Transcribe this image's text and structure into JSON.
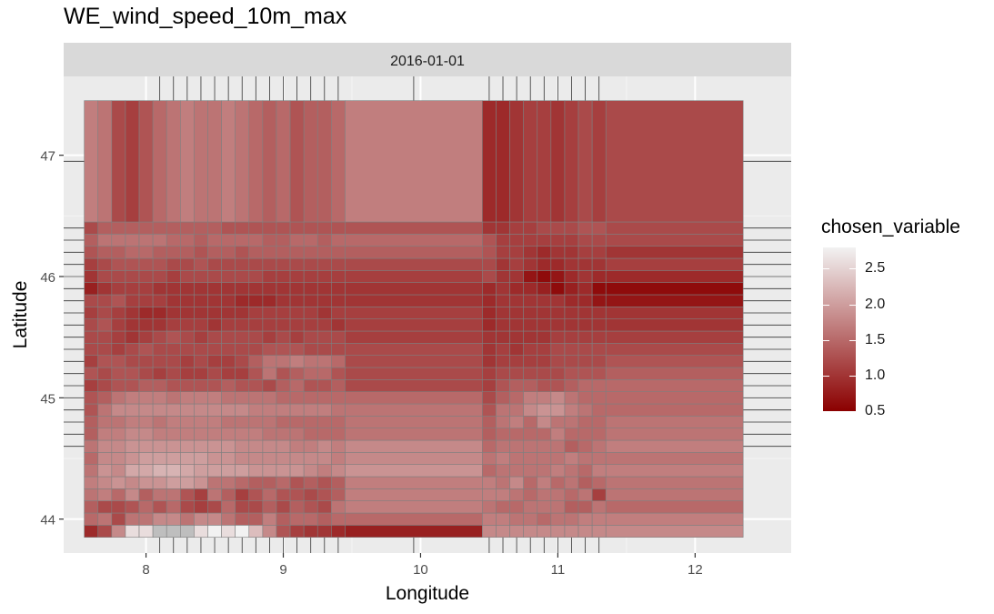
{
  "chart_data": {
    "type": "heatmap",
    "title": "WE_wind_speed_10m_max",
    "facet_label": "2016-01-01",
    "xlabel": "Longitude",
    "ylabel": "Latitude",
    "xlim": [
      7.4,
      12.7
    ],
    "ylim": [
      43.72,
      47.65
    ],
    "x_ticks": [
      8,
      9,
      10,
      11,
      12
    ],
    "y_ticks": [
      44,
      45,
      46,
      47
    ],
    "x_tick_labels": [
      "8",
      "9",
      "10",
      "11",
      "12"
    ],
    "y_tick_labels": [
      "44",
      "45",
      "46",
      "47"
    ],
    "legend": {
      "title": "chosen_variable",
      "placement": "right",
      "min": 0.5,
      "max": 2.8,
      "low_color": "#8B0000",
      "high_color": "#F2F2F2",
      "ticks": [
        0.5,
        1.0,
        1.5,
        2.0,
        2.5
      ],
      "tick_labels": [
        "0.5",
        "1.0",
        "1.5",
        "2.0",
        "2.5"
      ]
    },
    "grid": true,
    "panel_background": "#EBEBEB",
    "cell_border_color": "#7F7F7F",
    "missing_color": "#BEBEBE",
    "x_edges": [
      7.55,
      7.65,
      7.75,
      7.85,
      7.95,
      8.05,
      8.15,
      8.25,
      8.35,
      8.45,
      8.55,
      8.65,
      8.75,
      8.85,
      8.95,
      9.05,
      9.15,
      9.25,
      9.35,
      9.45,
      10.45,
      10.55,
      10.65,
      10.75,
      10.85,
      10.95,
      11.05,
      11.15,
      11.25,
      11.35,
      12.35
    ],
    "y_edges": [
      43.85,
      43.95,
      44.05,
      44.15,
      44.25,
      44.35,
      44.45,
      44.55,
      44.65,
      44.75,
      44.85,
      44.95,
      45.05,
      45.15,
      45.25,
      45.35,
      45.45,
      45.55,
      45.65,
      45.75,
      45.85,
      45.95,
      46.05,
      46.15,
      46.25,
      46.35,
      46.45,
      47.45
    ],
    "z": [
      [
        0.9,
        1.2,
        1.8,
        2.6,
        2.6,
        null,
        null,
        null,
        2.6,
        2.8,
        2.6,
        2.8,
        2.3,
        1.8,
        1.3,
        1.1,
        1.0,
        1.0,
        0.9,
        0.8,
        1.8,
        1.8,
        1.8,
        1.8,
        1.8,
        1.8,
        1.8,
        1.8,
        1.8,
        1.8
      ],
      [
        1.5,
        1.6,
        1.2,
        1.6,
        1.6,
        1.8,
        1.8,
        1.6,
        1.8,
        1.8,
        1.6,
        1.4,
        1.4,
        1.7,
        1.4,
        1.5,
        1.5,
        1.4,
        1.5,
        1.5,
        1.7,
        1.7,
        1.6,
        1.6,
        1.5,
        1.6,
        1.6,
        1.7,
        1.7,
        1.7
      ],
      [
        1.4,
        1.2,
        1.2,
        1.3,
        1.5,
        1.3,
        1.5,
        1.2,
        1.1,
        1.2,
        1.5,
        1.2,
        1.2,
        1.4,
        1.2,
        1.4,
        1.3,
        1.2,
        1.6,
        1.7,
        1.6,
        1.5,
        1.5,
        1.6,
        1.6,
        1.6,
        1.4,
        1.4,
        1.6,
        1.5
      ],
      [
        1.6,
        1.7,
        1.5,
        1.8,
        1.4,
        1.6,
        1.6,
        1.3,
        1.1,
        1.6,
        1.4,
        1.1,
        1.3,
        1.5,
        1.3,
        1.3,
        1.2,
        1.3,
        1.4,
        1.7,
        1.7,
        1.7,
        1.6,
        1.5,
        1.6,
        1.6,
        1.5,
        1.6,
        1.1,
        1.6
      ],
      [
        1.7,
        1.8,
        1.9,
        1.8,
        1.9,
        1.9,
        2.0,
        2.0,
        1.9,
        1.6,
        1.6,
        1.5,
        1.4,
        1.4,
        1.5,
        1.3,
        1.4,
        1.3,
        1.4,
        1.7,
        1.7,
        1.6,
        1.8,
        1.5,
        1.7,
        1.5,
        1.6,
        1.4,
        1.5,
        1.6
      ],
      [
        1.6,
        1.9,
        1.8,
        2.1,
        2.1,
        2.2,
        2.2,
        2.1,
        2.0,
        2.0,
        2.0,
        2.0,
        1.9,
        1.9,
        1.9,
        1.9,
        1.8,
        1.7,
        1.8,
        1.9,
        1.5,
        1.6,
        1.6,
        1.6,
        1.6,
        1.7,
        1.6,
        1.5,
        1.7,
        1.7
      ],
      [
        1.5,
        1.8,
        1.8,
        1.9,
        2.0,
        2.0,
        2.0,
        2.0,
        2.0,
        1.9,
        1.9,
        1.8,
        1.8,
        1.8,
        1.8,
        1.8,
        1.8,
        1.8,
        1.7,
        1.8,
        1.6,
        1.7,
        1.6,
        1.6,
        1.6,
        1.6,
        1.7,
        1.6,
        1.6,
        1.6
      ],
      [
        1.6,
        1.8,
        1.8,
        1.9,
        1.9,
        1.9,
        1.9,
        1.9,
        1.9,
        1.9,
        1.9,
        1.8,
        1.8,
        1.8,
        1.8,
        1.7,
        1.7,
        1.8,
        1.7,
        1.8,
        1.5,
        1.6,
        1.6,
        1.6,
        1.6,
        1.6,
        1.4,
        1.5,
        1.6,
        1.7
      ],
      [
        1.4,
        1.7,
        1.7,
        1.8,
        1.8,
        1.7,
        1.7,
        1.7,
        1.7,
        1.7,
        1.7,
        1.7,
        1.7,
        1.6,
        1.6,
        1.6,
        1.5,
        1.5,
        1.5,
        1.6,
        1.4,
        1.5,
        1.5,
        1.5,
        1.5,
        1.7,
        1.5,
        1.5,
        1.5,
        1.6
      ],
      [
        1.4,
        1.6,
        1.6,
        1.7,
        1.7,
        1.6,
        1.7,
        1.7,
        1.7,
        1.7,
        1.6,
        1.6,
        1.6,
        1.6,
        1.5,
        1.5,
        1.5,
        1.5,
        1.5,
        1.6,
        1.4,
        1.6,
        1.7,
        1.5,
        1.8,
        1.6,
        1.6,
        1.5,
        1.5,
        1.6
      ],
      [
        1.3,
        1.6,
        1.8,
        1.8,
        1.8,
        1.8,
        1.8,
        1.8,
        1.8,
        1.8,
        1.8,
        1.8,
        1.7,
        1.7,
        1.7,
        1.7,
        1.7,
        1.7,
        1.6,
        1.6,
        1.3,
        1.6,
        1.6,
        1.8,
        1.9,
        1.9,
        1.7,
        1.6,
        1.5,
        1.5
      ],
      [
        1.3,
        1.4,
        1.6,
        1.7,
        1.7,
        1.7,
        1.6,
        1.7,
        1.7,
        1.7,
        1.6,
        1.6,
        1.6,
        1.6,
        1.5,
        1.5,
        1.5,
        1.5,
        1.5,
        1.5,
        1.2,
        1.4,
        1.5,
        1.7,
        1.7,
        1.8,
        1.6,
        1.5,
        1.5,
        1.5
      ],
      [
        1.1,
        1.2,
        1.3,
        1.3,
        1.4,
        1.4,
        1.3,
        1.3,
        1.3,
        1.3,
        1.4,
        1.3,
        1.3,
        1.2,
        1.4,
        1.5,
        1.3,
        1.3,
        1.4,
        1.2,
        1.1,
        1.3,
        1.4,
        1.4,
        1.3,
        1.3,
        1.4,
        1.5,
        1.5,
        1.5
      ],
      [
        1.3,
        1.2,
        1.3,
        1.3,
        1.2,
        1.1,
        1.2,
        1.1,
        1.1,
        1.2,
        1.1,
        1.1,
        1.3,
        1.6,
        1.3,
        1.4,
        1.5,
        1.5,
        1.3,
        1.2,
        1.1,
        1.2,
        1.2,
        1.2,
        1.2,
        1.2,
        1.3,
        1.3,
        1.3,
        1.4
      ],
      [
        1.1,
        1.3,
        1.3,
        1.2,
        1.2,
        1.2,
        1.2,
        1.1,
        1.2,
        1.1,
        1.1,
        1.2,
        1.4,
        1.6,
        1.6,
        1.7,
        1.6,
        1.6,
        1.5,
        1.2,
        1.0,
        1.1,
        1.1,
        1.1,
        1.1,
        1.2,
        1.2,
        1.2,
        1.2,
        1.3
      ],
      [
        1.2,
        1.2,
        1.1,
        1.2,
        1.3,
        1.2,
        1.2,
        1.2,
        1.2,
        1.2,
        1.2,
        1.2,
        1.2,
        1.3,
        1.3,
        1.3,
        1.2,
        1.2,
        1.2,
        1.2,
        1.0,
        1.1,
        1.0,
        1.1,
        1.1,
        1.2,
        1.2,
        1.2,
        1.2,
        1.2
      ],
      [
        1.2,
        1.2,
        1.1,
        1.0,
        1.1,
        1.2,
        1.3,
        1.2,
        1.1,
        1.2,
        1.2,
        1.2,
        1.2,
        1.1,
        1.2,
        1.1,
        1.2,
        1.2,
        1.2,
        1.1,
        1.0,
        1.0,
        1.0,
        1.0,
        1.0,
        1.1,
        1.1,
        1.1,
        1.1,
        1.1
      ],
      [
        1.2,
        1.3,
        1.1,
        1.0,
        1.0,
        1.0,
        1.1,
        1.1,
        1.1,
        1.0,
        1.1,
        1.1,
        1.1,
        1.1,
        1.1,
        1.1,
        1.1,
        1.1,
        1.0,
        1.1,
        0.9,
        1.0,
        1.0,
        1.0,
        1.0,
        1.0,
        1.0,
        1.0,
        1.0,
        1.0
      ],
      [
        1.1,
        1.2,
        1.1,
        1.0,
        0.9,
        0.9,
        1.0,
        1.0,
        1.0,
        1.0,
        1.0,
        1.0,
        1.1,
        1.1,
        1.1,
        1.1,
        1.1,
        1.0,
        1.1,
        1.1,
        0.9,
        1.0,
        1.0,
        1.0,
        1.0,
        1.0,
        1.0,
        1.0,
        1.0,
        1.0
      ],
      [
        1.2,
        1.2,
        1.3,
        1.1,
        1.1,
        1.1,
        1.0,
        1.0,
        1.0,
        1.0,
        1.0,
        0.9,
        0.9,
        0.9,
        1.0,
        1.0,
        1.0,
        1.0,
        1.0,
        1.0,
        0.9,
        1.0,
        1.0,
        1.0,
        1.0,
        1.0,
        0.9,
        0.9,
        0.7,
        0.7
      ],
      [
        0.8,
        1.0,
        1.1,
        1.1,
        1.1,
        1.0,
        1.0,
        1.0,
        1.0,
        1.0,
        1.0,
        1.0,
        1.0,
        1.0,
        1.0,
        1.0,
        1.0,
        1.0,
        1.0,
        1.0,
        0.9,
        1.0,
        0.9,
        0.9,
        0.8,
        0.6,
        0.8,
        0.9,
        0.6,
        0.6
      ],
      [
        1.0,
        1.2,
        1.2,
        1.2,
        1.2,
        1.2,
        1.1,
        1.2,
        1.2,
        1.2,
        1.2,
        1.2,
        1.2,
        1.1,
        1.1,
        1.1,
        1.1,
        1.1,
        1.1,
        1.1,
        1.2,
        1.0,
        1.0,
        0.7,
        0.6,
        0.7,
        0.9,
        1.0,
        0.9,
        0.9
      ],
      [
        1.1,
        1.2,
        1.3,
        1.3,
        1.3,
        1.3,
        1.2,
        1.2,
        1.3,
        1.2,
        1.2,
        1.2,
        1.2,
        1.2,
        1.2,
        1.2,
        1.2,
        1.2,
        1.2,
        1.2,
        1.2,
        1.0,
        1.1,
        1.0,
        0.9,
        0.9,
        1.0,
        1.0,
        1.0,
        1.1
      ],
      [
        1.3,
        1.4,
        1.4,
        1.5,
        1.5,
        1.4,
        1.4,
        1.4,
        1.3,
        1.4,
        1.4,
        1.3,
        1.4,
        1.4,
        1.4,
        1.4,
        1.4,
        1.4,
        1.4,
        1.4,
        1.3,
        1.1,
        1.1,
        1.0,
        0.9,
        1.0,
        1.0,
        1.1,
        1.1,
        1.0
      ],
      [
        1.4,
        1.6,
        1.6,
        1.6,
        1.6,
        1.6,
        1.5,
        1.5,
        1.4,
        1.5,
        1.5,
        1.5,
        1.5,
        1.4,
        1.4,
        1.5,
        1.5,
        1.4,
        1.5,
        1.5,
        1.3,
        1.1,
        1.1,
        1.1,
        1.1,
        1.1,
        1.1,
        1.2,
        1.2,
        1.2
      ],
      [
        1.2,
        1.4,
        1.4,
        1.4,
        1.4,
        1.4,
        1.4,
        1.4,
        1.4,
        1.4,
        1.3,
        1.3,
        1.3,
        1.3,
        1.3,
        1.3,
        1.3,
        1.3,
        1.3,
        1.3,
        1.0,
        1.0,
        1.1,
        1.1,
        1.2,
        1.2,
        1.2,
        1.3,
        1.3,
        1.2
      ],
      [
        1.7,
        1.6,
        1.2,
        1.1,
        1.3,
        1.5,
        1.6,
        1.7,
        1.6,
        1.6,
        1.7,
        1.6,
        1.5,
        1.4,
        1.5,
        1.3,
        1.4,
        1.4,
        1.5,
        1.7,
        0.9,
        0.9,
        1.0,
        1.1,
        1.1,
        1.0,
        1.1,
        1.2,
        1.1,
        1.2
      ]
    ]
  }
}
